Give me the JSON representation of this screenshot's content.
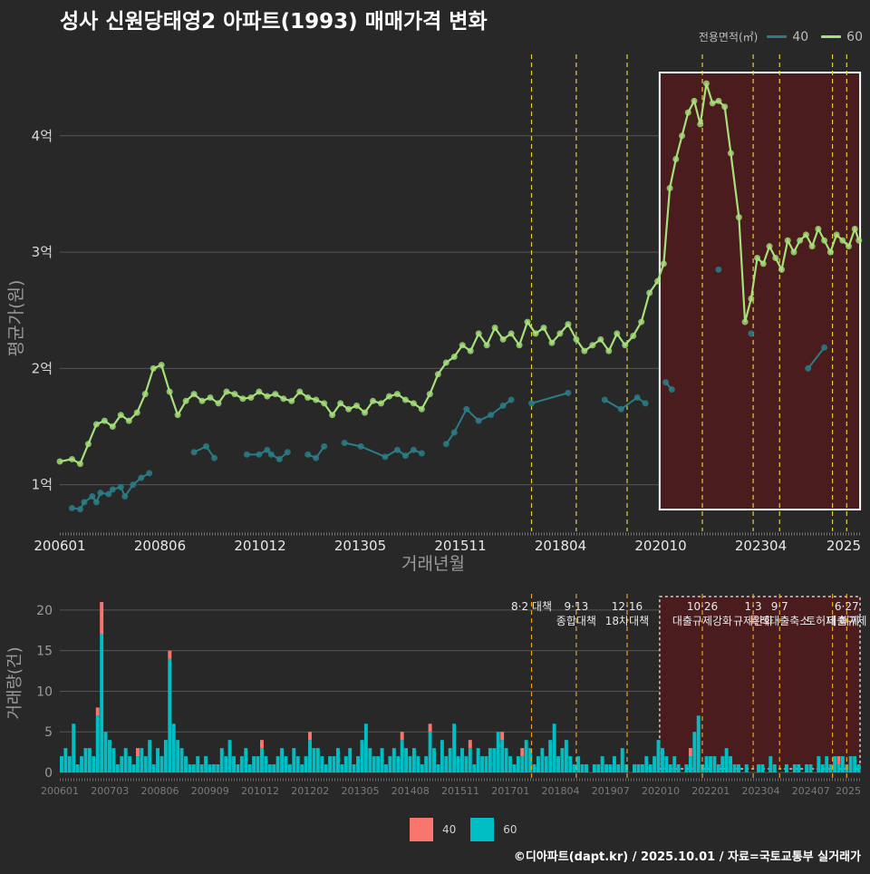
{
  "title": "성사 신원당태영2 아파트(1993) 매매가격 변화",
  "legend_top": {
    "title": "전용면적(㎡)",
    "items": [
      {
        "label": "40",
        "color": "#2a7d86"
      },
      {
        "label": "60",
        "color": "#a6e07a"
      }
    ]
  },
  "legend_bottom": {
    "items": [
      {
        "label": "40",
        "color": "#f8766d"
      },
      {
        "label": "60",
        "color": "#00bfc4"
      }
    ]
  },
  "credit": "©디아파트(dapt.kr) / 2025.10.01 / 자료=국토교통부 실거래가",
  "chart_data": [
    {
      "type": "line",
      "title": "성사 신원당태영2 아파트(1993) 매매가격 변화",
      "xlabel": "거래년월",
      "ylabel": "평균가(원)",
      "x_ticks": [
        "200601",
        "200806",
        "201012",
        "201305",
        "201511",
        "201804",
        "202010",
        "202304",
        "2025"
      ],
      "y_ticks": [
        {
          "value": 1,
          "label": "1억"
        },
        {
          "value": 2,
          "label": "2억"
        },
        {
          "value": 3,
          "label": "3억"
        },
        {
          "value": 4,
          "label": "4억"
        }
      ],
      "ylim": [
        0.6,
        4.7
      ],
      "xlim": [
        2006.0,
        2025.7
      ],
      "policy_lines": [
        2017.6,
        2018.7,
        2019.95,
        2021.8,
        2023.05,
        2023.7,
        2025.0,
        2025.35
      ],
      "highlight_range": [
        2020.75,
        2025.68
      ],
      "series": [
        {
          "name": "40",
          "color": "#2a7d86",
          "segments": [
            {
              "x": [
                2006.3,
                2006.5,
                2006.6,
                2006.8,
                2006.9,
                2007.0,
                2007.2,
                2007.3,
                2007.5,
                2007.6,
                2007.8,
                2008.0,
                2008.2
              ],
              "y": [
                0.8,
                0.79,
                0.85,
                0.9,
                0.85,
                0.93,
                0.92,
                0.96,
                0.98,
                0.9,
                1.0,
                1.06,
                1.1
              ]
            },
            {
              "x": [
                2009.3,
                2009.6,
                2009.8
              ],
              "y": [
                1.28,
                1.33,
                1.23
              ]
            },
            {
              "x": [
                2010.6,
                2010.9,
                2011.1,
                2011.2,
                2011.4,
                2011.6
              ],
              "y": [
                1.26,
                1.26,
                1.3,
                1.26,
                1.22,
                1.28
              ]
            },
            {
              "x": [
                2012.1,
                2012.3,
                2012.5
              ],
              "y": [
                1.26,
                1.23,
                1.33
              ]
            },
            {
              "x": [
                2013.0,
                2013.4,
                2014.0,
                2014.3,
                2014.5,
                2014.7,
                2014.9
              ],
              "y": [
                1.36,
                1.33,
                1.24,
                1.3,
                1.25,
                1.3,
                1.27
              ]
            },
            {
              "x": [
                2015.5,
                2015.7,
                2016.0,
                2016.3,
                2016.6,
                2016.9,
                2017.1
              ],
              "y": [
                1.35,
                1.45,
                1.65,
                1.55,
                1.6,
                1.68,
                1.73
              ]
            },
            {
              "x": [
                2017.6,
                2018.5
              ],
              "y": [
                1.7,
                1.79
              ]
            },
            {
              "x": [
                2019.4,
                2019.8,
                2020.2,
                2020.4
              ],
              "y": [
                1.73,
                1.65,
                1.75,
                1.7
              ]
            },
            {
              "x": [
                2020.9,
                2021.05
              ],
              "y": [
                1.88,
                1.82
              ]
            },
            {
              "x": [
                2022.2
              ],
              "y": [
                2.85
              ]
            },
            {
              "x": [
                2023.0
              ],
              "y": [
                2.3
              ]
            },
            {
              "x": [
                2024.4,
                2024.8
              ],
              "y": [
                2.0,
                2.18
              ]
            }
          ]
        },
        {
          "name": "60",
          "color": "#a6e07a",
          "x": [
            2006.0,
            2006.3,
            2006.5,
            2006.7,
            2006.9,
            2007.1,
            2007.3,
            2007.5,
            2007.7,
            2007.9,
            2008.1,
            2008.3,
            2008.5,
            2008.7,
            2008.9,
            2009.1,
            2009.3,
            2009.5,
            2009.7,
            2009.9,
            2010.1,
            2010.3,
            2010.5,
            2010.7,
            2010.9,
            2011.1,
            2011.3,
            2011.5,
            2011.7,
            2011.9,
            2012.1,
            2012.3,
            2012.5,
            2012.7,
            2012.9,
            2013.1,
            2013.3,
            2013.5,
            2013.7,
            2013.9,
            2014.1,
            2014.3,
            2014.5,
            2014.7,
            2014.9,
            2015.1,
            2015.3,
            2015.5,
            2015.7,
            2015.9,
            2016.1,
            2016.3,
            2016.5,
            2016.7,
            2016.9,
            2017.1,
            2017.3,
            2017.5,
            2017.7,
            2017.9,
            2018.1,
            2018.3,
            2018.5,
            2018.7,
            2018.9,
            2019.1,
            2019.3,
            2019.5,
            2019.7,
            2019.9,
            2020.1,
            2020.3,
            2020.5,
            2020.7,
            2020.85,
            2021.0,
            2021.15,
            2021.3,
            2021.45,
            2021.6,
            2021.75,
            2021.9,
            2022.05,
            2022.2,
            2022.35,
            2022.5,
            2022.7,
            2022.85,
            2023.0,
            2023.15,
            2023.3,
            2023.45,
            2023.6,
            2023.75,
            2023.9,
            2024.05,
            2024.2,
            2024.35,
            2024.5,
            2024.65,
            2024.8,
            2024.95,
            2025.1,
            2025.25,
            2025.4,
            2025.55,
            2025.65
          ],
          "y": [
            1.2,
            1.22,
            1.18,
            1.35,
            1.52,
            1.55,
            1.5,
            1.6,
            1.55,
            1.62,
            1.78,
            2.0,
            2.03,
            1.8,
            1.6,
            1.72,
            1.78,
            1.72,
            1.75,
            1.7,
            1.8,
            1.78,
            1.74,
            1.75,
            1.8,
            1.76,
            1.78,
            1.74,
            1.72,
            1.8,
            1.75,
            1.73,
            1.7,
            1.6,
            1.7,
            1.65,
            1.68,
            1.62,
            1.72,
            1.7,
            1.76,
            1.78,
            1.73,
            1.7,
            1.65,
            1.78,
            1.95,
            2.05,
            2.1,
            2.2,
            2.15,
            2.3,
            2.2,
            2.35,
            2.25,
            2.3,
            2.2,
            2.4,
            2.3,
            2.35,
            2.22,
            2.3,
            2.38,
            2.25,
            2.15,
            2.2,
            2.25,
            2.15,
            2.3,
            2.2,
            2.28,
            2.4,
            2.65,
            2.75,
            2.9,
            3.55,
            3.8,
            4.0,
            4.2,
            4.3,
            4.1,
            4.45,
            4.28,
            4.3,
            4.25,
            3.85,
            3.3,
            2.4,
            2.6,
            2.95,
            2.9,
            3.05,
            2.95,
            2.85,
            3.1,
            3.0,
            3.1,
            3.15,
            3.05,
            3.2,
            3.1,
            3.0,
            3.15,
            3.1,
            3.05,
            3.2,
            3.1
          ]
        }
      ]
    },
    {
      "type": "bar",
      "stacked": true,
      "ylabel": "거래량(건)",
      "ylim": [
        0,
        22
      ],
      "y_ticks": [
        0,
        5,
        10,
        15,
        20
      ],
      "x_ticks": [
        "200601",
        "200703",
        "200806",
        "200909",
        "201012",
        "201202",
        "201305",
        "201408",
        "201511",
        "201701",
        "201804",
        "201907",
        "202010",
        "202201",
        "202304",
        "202407",
        "2025"
      ],
      "annotations": [
        {
          "x": 2017.6,
          "lines": [
            "8·2 대책"
          ]
        },
        {
          "x": 2018.7,
          "lines": [
            "9·13",
            "종합대책"
          ]
        },
        {
          "x": 2019.95,
          "lines": [
            "12·16",
            "18차대책"
          ]
        },
        {
          "x": 2021.8,
          "lines": [
            "10·26",
            "대출규제강화"
          ]
        },
        {
          "x": 2023.05,
          "lines": [
            "1·3",
            "규제완화"
          ]
        },
        {
          "x": 2023.7,
          "lines": [
            "9·7",
            "특례대출축소"
          ]
        },
        {
          "x": 2025.0,
          "lines": [
            "",
            "토허제 해제"
          ]
        },
        {
          "x": 2025.35,
          "lines": [
            "6·27",
            "대출규제"
          ]
        }
      ],
      "series": [
        {
          "name": "60",
          "values": [
            2,
            3,
            2,
            6,
            1,
            2,
            3,
            3,
            2,
            7,
            17,
            5,
            4,
            3,
            1,
            2,
            3,
            2,
            1,
            2,
            3,
            2,
            4,
            1,
            3,
            2,
            4,
            14,
            6,
            4,
            3,
            2,
            1,
            1,
            2,
            1,
            2,
            1,
            1,
            1,
            3,
            2,
            4,
            2,
            1,
            2,
            3,
            1,
            2,
            2,
            3,
            2,
            1,
            1,
            2,
            3,
            2,
            1,
            3,
            2,
            1,
            2,
            4,
            3,
            3,
            2,
            1,
            2,
            2,
            3,
            1,
            2,
            3,
            1,
            2,
            4,
            6,
            3,
            2,
            2,
            3,
            1,
            2,
            3,
            2,
            4,
            3,
            2,
            3,
            2,
            1,
            2,
            5,
            3,
            1,
            4,
            2,
            3,
            6,
            2,
            3,
            2,
            3,
            1,
            3,
            2,
            2,
            3,
            3,
            5,
            4,
            3,
            2,
            1,
            2,
            2,
            4,
            3,
            1,
            2,
            3,
            2,
            4,
            6,
            2,
            3,
            4,
            2,
            1,
            2,
            1,
            1,
            0,
            1,
            1,
            2,
            1,
            1,
            2,
            1,
            3,
            1,
            0,
            1,
            1,
            1,
            2,
            1,
            2,
            4,
            3,
            2,
            1,
            2,
            1,
            0,
            1,
            2,
            5,
            7,
            1,
            2,
            2,
            2,
            1,
            2,
            3,
            2,
            1,
            1,
            0,
            1,
            0,
            0,
            1,
            1,
            0,
            2,
            1,
            0,
            0,
            1,
            0,
            1,
            1,
            0,
            1,
            1,
            0,
            2,
            1,
            2,
            1,
            2,
            1,
            2,
            1,
            2,
            2,
            1
          ]
        },
        {
          "name": "40",
          "values": [
            0,
            0,
            0,
            0,
            0,
            0,
            0,
            0,
            0,
            1,
            4,
            0,
            0,
            0,
            0,
            0,
            0,
            0,
            0,
            1,
            0,
            0,
            0,
            0,
            0,
            0,
            0,
            1,
            0,
            0,
            0,
            0,
            0,
            0,
            0,
            0,
            0,
            0,
            0,
            0,
            0,
            0,
            0,
            0,
            0,
            0,
            0,
            0,
            0,
            0,
            1,
            0,
            0,
            0,
            0,
            0,
            0,
            0,
            0,
            0,
            0,
            0,
            1,
            0,
            0,
            0,
            0,
            0,
            0,
            0,
            0,
            0,
            0,
            0,
            0,
            0,
            0,
            0,
            0,
            0,
            0,
            0,
            0,
            0,
            0,
            1,
            0,
            0,
            0,
            0,
            0,
            0,
            1,
            0,
            0,
            0,
            0,
            0,
            0,
            0,
            0,
            0,
            1,
            0,
            0,
            0,
            0,
            0,
            0,
            0,
            1,
            0,
            0,
            0,
            0,
            1,
            0,
            0,
            0,
            0,
            0,
            0,
            0,
            0,
            0,
            0,
            0,
            0,
            0,
            0,
            0,
            0,
            0,
            0,
            0,
            0,
            0,
            0,
            0,
            0,
            0,
            0,
            0,
            0,
            0,
            0,
            0,
            0,
            0,
            0,
            0,
            0,
            0,
            0,
            0,
            0,
            0,
            1,
            0,
            0,
            0,
            0,
            0,
            0,
            0,
            0,
            0,
            0,
            0,
            0,
            0,
            0,
            0,
            0,
            0,
            0,
            0,
            0,
            0,
            0,
            0,
            0,
            0,
            0,
            0,
            0,
            0,
            0,
            0,
            0,
            0,
            0,
            0,
            0,
            1,
            0,
            0,
            0,
            0,
            0
          ]
        }
      ]
    }
  ]
}
